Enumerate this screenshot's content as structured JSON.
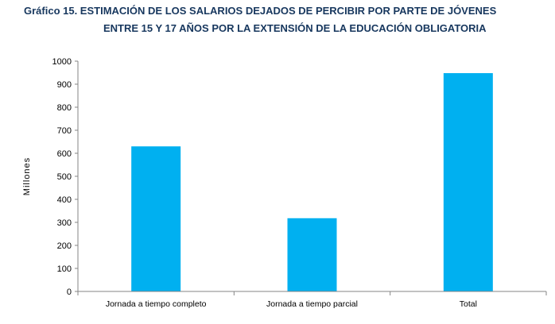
{
  "title": {
    "line1": "Gráfico 15. ESTIMACIÓN DE LOS SALARIOS DEJADOS DE PERCIBIR POR PARTE DE JÓVENES",
    "line2": "ENTRE 15 Y 17 AÑOS POR LA EXTENSIÓN DE LA EDUCACIÓN OBLIGATORIA"
  },
  "colors": {
    "bar": "#00b0f0",
    "title": "#17375e",
    "axis": "#868686"
  },
  "chart_data": {
    "type": "bar",
    "categories": [
      "Jornada a tiempo completo",
      "Jornada a tiempo parcial",
      "Total"
    ],
    "values": [
      630,
      318,
      948
    ],
    "title": "Gráfico 15. ESTIMACIÓN DE LOS SALARIOS DEJADOS DE PERCIBIR POR PARTE DE JÓVENES ENTRE 15 Y 17 AÑOS POR LA EXTENSIÓN DE LA EDUCACIÓN OBLIGATORIA",
    "xlabel": "",
    "ylabel": "Millones",
    "ylim": [
      0,
      1000
    ],
    "yticks": [
      0,
      100,
      200,
      300,
      400,
      500,
      600,
      700,
      800,
      900,
      1000
    ],
    "grid": false,
    "legend": "none"
  }
}
